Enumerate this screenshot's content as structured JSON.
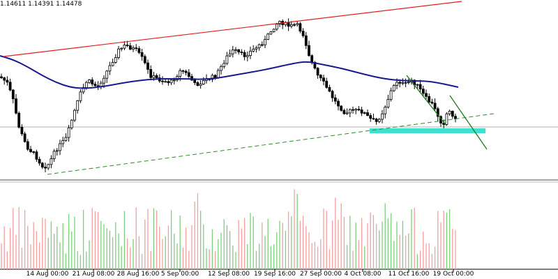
{
  "quote": {
    "ohlc_text": "1.14611 1.14391 1.14478"
  },
  "time_axis": {
    "labels": [
      "14 Aug 00:00",
      "21 Aug 08:00",
      "28 Aug 16:00",
      "5 Sep 00:00",
      "12 Sep 08:00",
      "19 Sep 16:00",
      "27 Sep 00:00",
      "4 Oct 08:00",
      "11 Oct 16:00",
      "19 Oct 00:00"
    ]
  },
  "colors": {
    "bull_candle": "#000000",
    "bear_candle": "#000000",
    "moving_average": "#1a1a8c",
    "upper_trendline": "#e02020",
    "lower_trendline": "#2e8b2e",
    "short_trendline": "#1e7a1e",
    "support_zone": "#40e0d0",
    "volume_up": "#7ccf7c",
    "volume_down": "#f2a0a0"
  },
  "chart_data": {
    "type": "candlestick",
    "series": [
      {
        "name": "",
        "type": "moving_average"
      },
      {
        "name": "",
        "type": "volume"
      }
    ]
  }
}
